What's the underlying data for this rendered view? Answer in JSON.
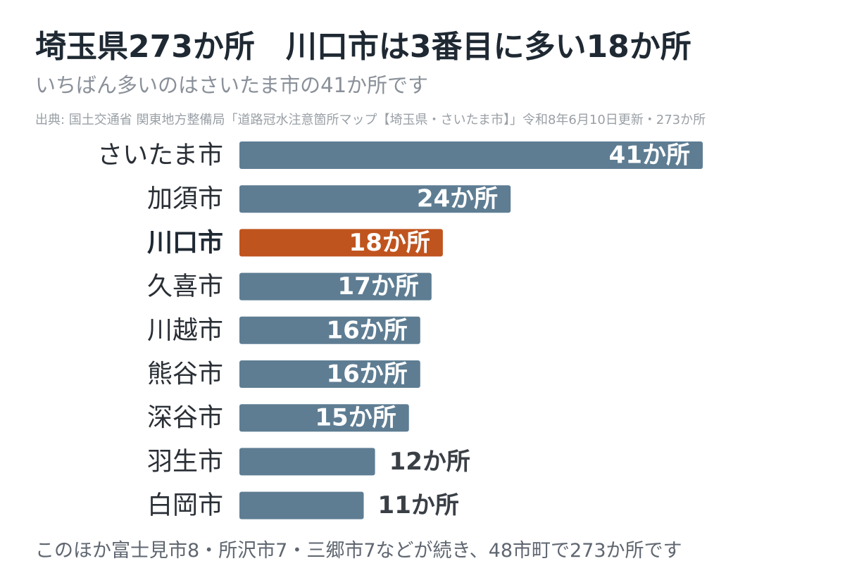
{
  "header": {
    "title": "埼玉県273か所　川口市は3番目に多い18か所",
    "subtitle": "いちばん多いのはさいたま市の41か所です",
    "source": "出典: 国土交通省 関東地方整備局「道路冠水注意箇所マップ【埼玉県・さいたま市】」令和8年6月10日更新・273か所"
  },
  "footer": {
    "note": "このほか富士見市8・所沢市7・三郷市7などが続き、48市町で273か所です"
  },
  "colors": {
    "bar": "#5e7d93",
    "highlight": "#c0541e",
    "label_inside": "#ffffff",
    "label_outside": "#3a3f46"
  },
  "chart_data": {
    "type": "bar",
    "orientation": "horizontal",
    "categories": [
      "さいたま市",
      "加須市",
      "川口市",
      "久喜市",
      "川越市",
      "熊谷市",
      "深谷市",
      "羽生市",
      "白岡市"
    ],
    "values": [
      41,
      24,
      18,
      17,
      16,
      16,
      15,
      12,
      11
    ],
    "value_labels": [
      "41か所",
      "24か所",
      "18か所",
      "17か所",
      "16か所",
      "16か所",
      "15か所",
      "12か所",
      "11か所"
    ],
    "highlight": "川口市",
    "title": "",
    "xlabel": "",
    "ylabel": "",
    "xlim": [
      0,
      41
    ],
    "grid": false,
    "legend": "none"
  }
}
